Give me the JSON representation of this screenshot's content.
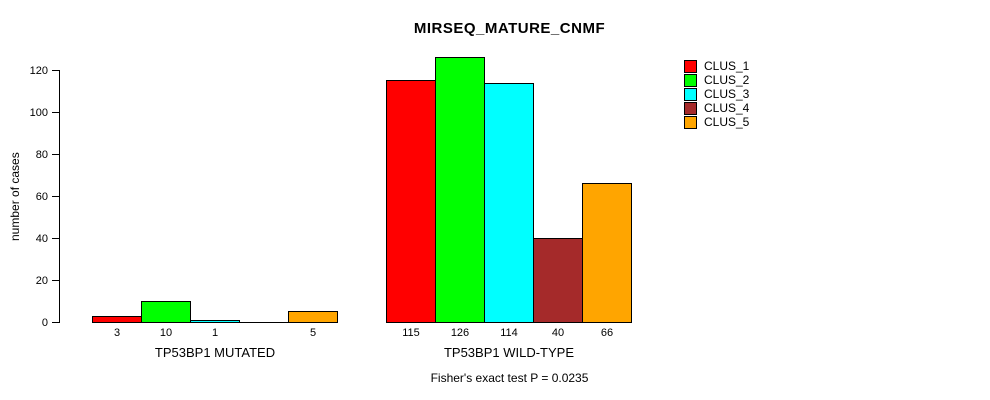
{
  "chart_data": {
    "type": "bar",
    "title": "MIRSEQ_MATURE_CNMF",
    "ylabel": "number of cases",
    "xlabel": "",
    "ylim": [
      0,
      120
    ],
    "yticks": [
      0,
      20,
      40,
      60,
      80,
      100,
      120
    ],
    "grid": false,
    "legend_position": "top-right",
    "categories": [
      "TP53BP1 MUTATED",
      "TP53BP1 WILD-TYPE"
    ],
    "series": [
      {
        "name": "CLUS_1",
        "color": "#ff0000",
        "values": [
          3,
          115
        ]
      },
      {
        "name": "CLUS_2",
        "color": "#00ff00",
        "values": [
          10,
          126
        ]
      },
      {
        "name": "CLUS_3",
        "color": "#00ffff",
        "values": [
          1,
          114
        ]
      },
      {
        "name": "CLUS_4",
        "color": "#a52a2a",
        "values": [
          0,
          40
        ]
      },
      {
        "name": "CLUS_5",
        "color": "#ffa500",
        "values": [
          5,
          66
        ]
      }
    ],
    "bar_value_labels": [
      [
        "3",
        "10",
        "1",
        "",
        "5"
      ],
      [
        "115",
        "126",
        "114",
        "40",
        "66"
      ]
    ],
    "bar_border_color": "#000000",
    "footnote": "Fisher's exact test P = 0.0235"
  }
}
